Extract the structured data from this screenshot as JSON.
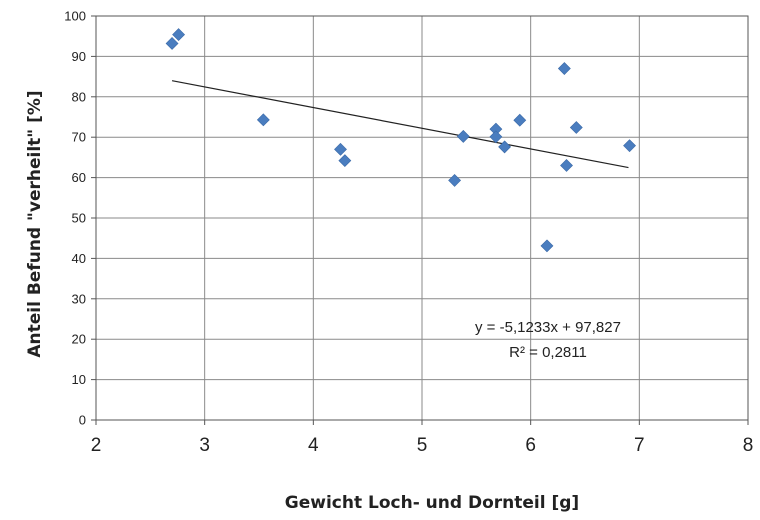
{
  "chart_data": {
    "type": "scatter",
    "xlabel": "Gewicht Loch- und Dornteil [g]",
    "ylabel": "Anteil Befund \"verheilt\" [%]",
    "xlim": [
      2,
      8
    ],
    "ylim": [
      0,
      100
    ],
    "x_ticks": [
      "2",
      "3",
      "4",
      "5",
      "6",
      "7",
      "8"
    ],
    "y_ticks": [
      "0",
      "10",
      "20",
      "30",
      "40",
      "50",
      "60",
      "70",
      "80",
      "90",
      "100"
    ],
    "grid": true,
    "marker": "diamond",
    "marker_color": "#4a7dbf",
    "series": [
      {
        "points": [
          {
            "x": 2.7,
            "y": 93.2
          },
          {
            "x": 2.76,
            "y": 95.4
          },
          {
            "x": 3.54,
            "y": 74.3
          },
          {
            "x": 4.25,
            "y": 67.0
          },
          {
            "x": 4.29,
            "y": 64.2
          },
          {
            "x": 5.3,
            "y": 59.3
          },
          {
            "x": 5.38,
            "y": 70.2
          },
          {
            "x": 5.68,
            "y": 72.0
          },
          {
            "x": 5.68,
            "y": 70.1
          },
          {
            "x": 5.76,
            "y": 67.6
          },
          {
            "x": 5.9,
            "y": 74.2
          },
          {
            "x": 6.15,
            "y": 43.1
          },
          {
            "x": 6.31,
            "y": 87.0
          },
          {
            "x": 6.33,
            "y": 63.0
          },
          {
            "x": 6.42,
            "y": 72.4
          },
          {
            "x": 6.91,
            "y": 67.9
          }
        ]
      }
    ],
    "trendline": {
      "type": "linear",
      "slope": -5.1233,
      "intercept": 97.827,
      "x_range": [
        2.7,
        6.9
      ],
      "equation_label": "y = -5,1233x + 97,827",
      "r2_label": "R² = 0,2811"
    }
  }
}
